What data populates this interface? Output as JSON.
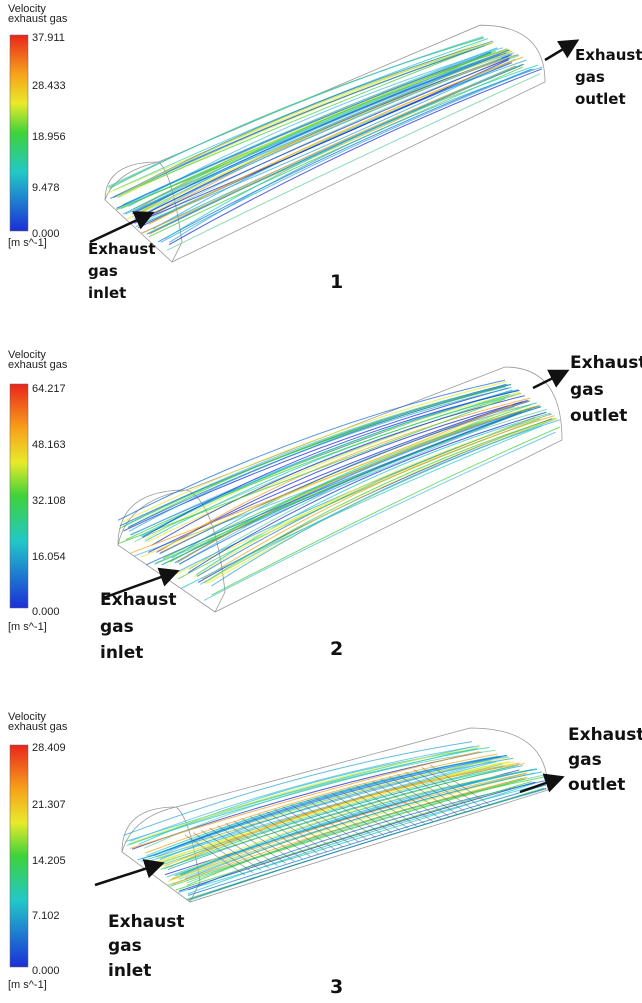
{
  "panels": [
    {
      "legend": {
        "title": "Velocity",
        "subtitle": "exhaust gas",
        "ticks": [
          "37.911",
          "28.433",
          "18.956",
          "9.478",
          "0.000"
        ],
        "unit": "[m s^-1]"
      },
      "inlet_label": [
        "Exhaust",
        "gas",
        "inlet"
      ],
      "outlet_label": [
        "Exhaust",
        "gas",
        "outlet"
      ],
      "number": "1"
    },
    {
      "legend": {
        "title": "Velocity",
        "subtitle": "exhaust gas",
        "ticks": [
          "64.217",
          "48.163",
          "32.108",
          "16.054",
          "0.000"
        ],
        "unit": "[m s^-1]"
      },
      "inlet_label": [
        "Exhaust",
        "gas",
        "inlet"
      ],
      "outlet_label": [
        "Exhaust",
        "gas",
        "outlet"
      ],
      "number": "2"
    },
    {
      "legend": {
        "title": "Velocity",
        "subtitle": "exhaust gas",
        "ticks": [
          "28.409",
          "21.307",
          "14.205",
          "7.102",
          "0.000"
        ],
        "unit": "[m s^-1]"
      },
      "inlet_label": [
        "Exhaust",
        "gas",
        "inlet"
      ],
      "outlet_label": [
        "Exhaust",
        "gas",
        "outlet"
      ],
      "number": "3"
    }
  ]
}
